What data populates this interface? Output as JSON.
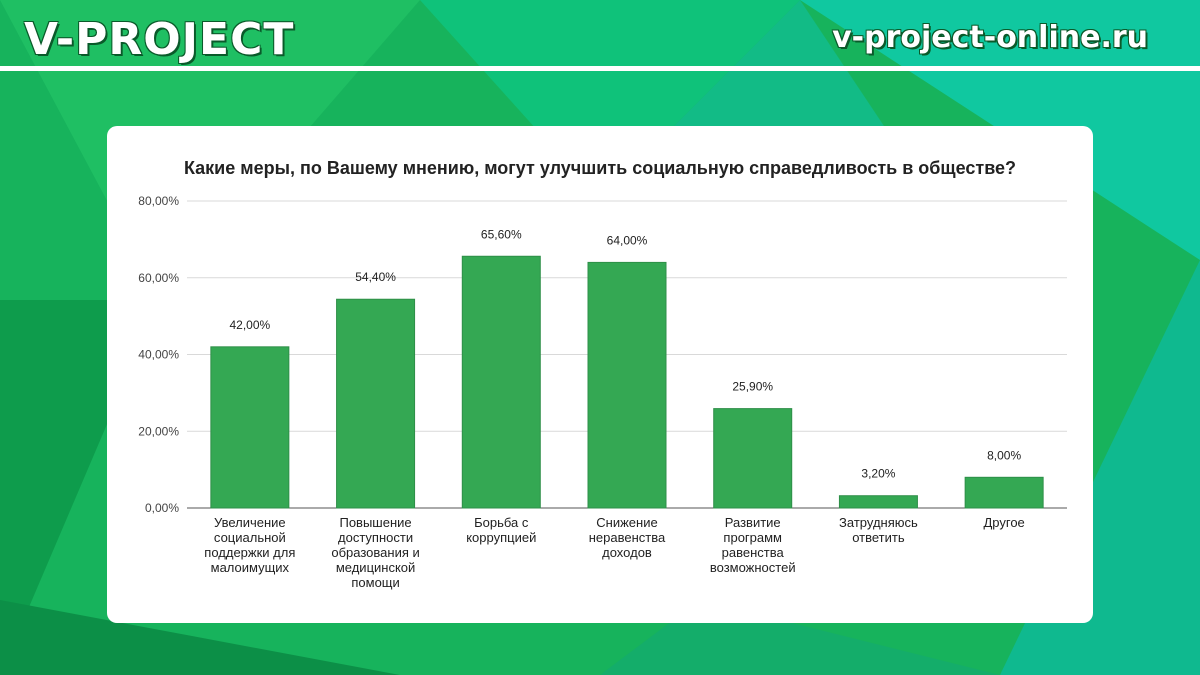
{
  "header": {
    "brand": "V-PROJECT",
    "site": "v-project-online.ru"
  },
  "colors": {
    "bar": "#34a853",
    "bar_stroke": "#2e8f48",
    "grid": "#d9d9d9"
  },
  "chart_data": {
    "type": "bar",
    "title": "Какие меры, по Вашему мнению, могут улучшить социальную справедливость в обществе?",
    "categories": [
      [
        "Увеличение",
        "социальной",
        "поддержки для",
        "малоимущих"
      ],
      [
        "Повышение",
        "доступности",
        "образования и",
        "медицинской",
        "помощи"
      ],
      [
        "Борьба с",
        "коррупцией"
      ],
      [
        "Снижение",
        "неравенства",
        "доходов"
      ],
      [
        "Развитие",
        "программ",
        "равенства",
        "возможностей"
      ],
      [
        "Затрудняюсь",
        "ответить"
      ],
      [
        "Другое"
      ]
    ],
    "values": [
      42.0,
      54.4,
      65.6,
      64.0,
      25.9,
      3.2,
      8.0
    ],
    "value_labels": [
      "42,00%",
      "54,40%",
      "65,60%",
      "64,00%",
      "25,90%",
      "3,20%",
      "8,00%"
    ],
    "ylim": [
      0,
      80
    ],
    "y_ticks": [
      0,
      20,
      40,
      60,
      80
    ],
    "y_tick_labels": [
      "0,00%",
      "20,00%",
      "40,00%",
      "60,00%",
      "80,00%"
    ],
    "grid": true,
    "legend": "none"
  }
}
